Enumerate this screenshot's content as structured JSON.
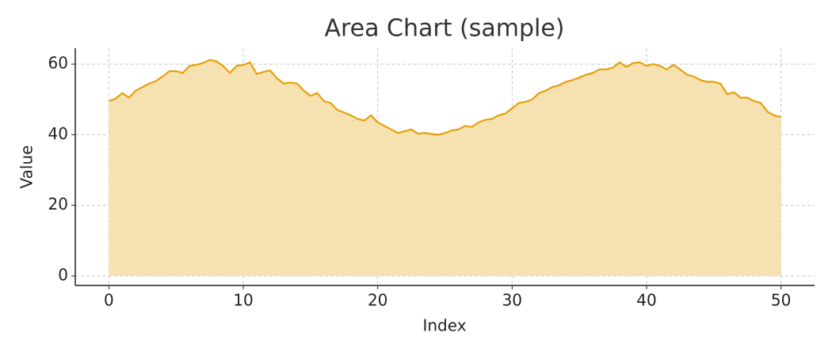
{
  "chart_data": {
    "type": "area",
    "title": "Area Chart (sample)",
    "x_label": "Index",
    "y_label": "Value",
    "x": [
      0,
      0.5,
      1,
      1.5,
      2,
      2.5,
      3,
      3.5,
      4,
      4.5,
      5,
      5.5,
      6,
      6.5,
      7,
      7.5,
      8,
      8.5,
      9,
      9.5,
      10,
      10.5,
      11,
      11.5,
      12,
      12.5,
      13,
      13.5,
      14,
      14.5,
      15,
      15.5,
      16,
      16.5,
      17,
      17.5,
      18,
      18.5,
      19,
      19.5,
      20,
      20.5,
      21,
      21.5,
      22,
      22.5,
      23,
      23.5,
      24,
      24.5,
      25,
      25.5,
      26,
      26.5,
      27,
      27.5,
      28,
      28.5,
      29,
      29.5,
      30,
      30.5,
      31,
      31.5,
      32,
      32.5,
      33,
      33.5,
      34,
      34.5,
      35,
      35.5,
      36,
      36.5,
      37,
      37.5,
      38,
      38.5,
      39,
      39.5,
      40,
      40.5,
      41,
      41.5,
      42,
      42.5,
      43,
      43.5,
      44,
      44.5,
      45,
      45.5,
      46,
      46.5,
      47,
      47.5,
      48,
      48.5,
      49,
      49.5,
      50
    ],
    "values": [
      49.5,
      50.2,
      51.8,
      50.5,
      52.5,
      53.5,
      54.5,
      55.2,
      56.5,
      58,
      58,
      57.5,
      59.5,
      59.8,
      60.3,
      61.2,
      60.8,
      59.5,
      57.5,
      59.5,
      59.8,
      60.5,
      57.2,
      57.8,
      58.2,
      56,
      54.5,
      54.8,
      54.5,
      52.5,
      51,
      51.8,
      49.5,
      49,
      47,
      46.3,
      45.5,
      44.5,
      44,
      45.5,
      43.5,
      42.5,
      41.5,
      40.5,
      41,
      41.5,
      40.3,
      40.5,
      40.2,
      40,
      40.5,
      41.2,
      41.5,
      42.5,
      42.2,
      43.5,
      44.2,
      44.5,
      45.5,
      46,
      47.5,
      49,
      49.3,
      50,
      51.8,
      52.5,
      53.5,
      54,
      55,
      55.5,
      56.2,
      57,
      57.5,
      58.5,
      58.5,
      59,
      60.5,
      59.2,
      60.3,
      60.5,
      59.5,
      60,
      59.5,
      58.5,
      59.8,
      58.5,
      57,
      56.5,
      55.5,
      55,
      55,
      54.5,
      51.5,
      52,
      50.5,
      50.5,
      49.5,
      49,
      46.5,
      45.5,
      45
    ],
    "color": "#e6a00a",
    "fill_color": "#f6e1b0",
    "xlim": [
      -2.5,
      52.5
    ],
    "ylim": [
      -2.7,
      64.5
    ],
    "xticks": [
      0,
      10,
      20,
      30,
      40,
      50
    ],
    "yticks": [
      0,
      20,
      40,
      60
    ],
    "grid": true
  }
}
